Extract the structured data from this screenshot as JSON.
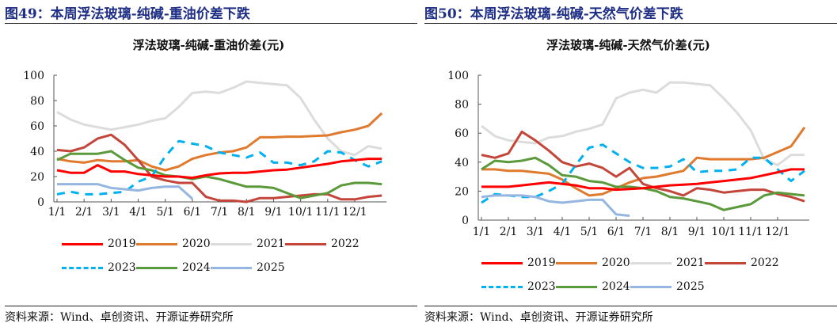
{
  "source": "资料来源：Wind、卓创资讯、开源证券研究所",
  "chart_data": [
    {
      "type": "line",
      "figure_title": "图49：本周浮法玻璃-纯碱-重油价差下跌",
      "title": "浮法玻璃-纯碱-重油价差(元)",
      "ylim": [
        0,
        100
      ],
      "yticks": [
        0,
        20,
        40,
        60,
        80,
        100
      ],
      "xticks": [
        "1/1",
        "2/1",
        "3/1",
        "4/1",
        "5/1",
        "6/1",
        "7/1",
        "8/1",
        "9/1",
        "10/1",
        "11/1",
        "12/1"
      ],
      "legend": "bottom",
      "grid": false,
      "x": [
        "1/1",
        "1/15",
        "2/1",
        "2/15",
        "3/1",
        "3/15",
        "4/1",
        "4/15",
        "5/1",
        "5/15",
        "6/1",
        "6/15",
        "7/1",
        "7/15",
        "8/1",
        "8/15",
        "9/1",
        "9/15",
        "10/1",
        "10/15",
        "11/1",
        "11/15",
        "12/1",
        "12/15",
        "12/31"
      ],
      "series": [
        {
          "name": "2019",
          "color": "#ff0000",
          "dashed": false,
          "values": [
            25,
            23,
            23,
            29,
            24,
            24,
            22,
            21,
            20,
            20,
            19,
            21,
            22.5,
            23,
            23,
            24,
            25,
            25.5,
            27,
            28.5,
            30,
            32,
            33,
            34,
            34
          ]
        },
        {
          "name": "2020",
          "color": "#e07a2e",
          "dashed": false,
          "values": [
            34,
            32,
            31,
            33,
            32,
            32,
            33,
            28,
            25,
            28,
            34,
            37,
            39,
            40,
            43,
            51,
            51,
            51.5,
            51.5,
            52,
            52.5,
            55,
            57,
            60,
            70
          ]
        },
        {
          "name": "2021",
          "color": "#dcdcdc",
          "dashed": false,
          "values": [
            71,
            65,
            61,
            59,
            57,
            59,
            61,
            64,
            66,
            75,
            86,
            87,
            86,
            90,
            95,
            94,
            93,
            92,
            82,
            65,
            50,
            40,
            37,
            44,
            42
          ]
        },
        {
          "name": "2022",
          "color": "#c4463a",
          "dashed": false,
          "values": [
            41,
            40,
            43,
            50,
            53,
            45,
            33,
            20,
            17,
            15,
            15,
            4,
            1,
            1,
            0,
            3,
            3,
            4,
            5,
            6,
            6,
            2,
            2,
            4,
            5
          ]
        },
        {
          "name": "2023",
          "color": "#00b0f0",
          "dashed": true,
          "values": [
            6,
            8,
            6,
            6,
            7,
            8,
            16,
            20,
            36,
            48,
            46,
            44,
            39,
            37,
            35,
            39,
            31,
            31,
            29,
            32,
            40,
            39,
            33,
            28,
            32
          ]
        },
        {
          "name": "2024",
          "color": "#5b9a3a",
          "dashed": false,
          "values": [
            33,
            38,
            38,
            38,
            40,
            33,
            27,
            25,
            21,
            20,
            18,
            20,
            18,
            15,
            12,
            12,
            11,
            7,
            3,
            5,
            7,
            13,
            15,
            15,
            14
          ]
        },
        {
          "name": "2025",
          "color": "#95b6e0",
          "dashed": false,
          "values": [
            14,
            14,
            14,
            14,
            11,
            10,
            9,
            11,
            12,
            12,
            2.5,
            null,
            null,
            null,
            null,
            null,
            null,
            null,
            null,
            null,
            null,
            null,
            null,
            null,
            null
          ]
        }
      ]
    },
    {
      "type": "line",
      "figure_title": "图50：本周浮法玻璃-纯碱-天然气价差下跌",
      "title": "浮法玻璃-纯碱-天然气价差(元)",
      "ylim": [
        0,
        100
      ],
      "yticks": [
        0,
        20,
        40,
        60,
        80,
        100
      ],
      "xticks": [
        "1/1",
        "2/1",
        "3/1",
        "4/1",
        "5/1",
        "6/1",
        "7/1",
        "8/1",
        "9/1",
        "10/1",
        "11/1",
        "12/1"
      ],
      "legend": "bottom",
      "grid": false,
      "x": [
        "1/1",
        "1/15",
        "2/1",
        "2/15",
        "3/1",
        "3/15",
        "4/1",
        "4/15",
        "5/1",
        "5/15",
        "6/1",
        "6/15",
        "7/1",
        "7/15",
        "8/1",
        "8/15",
        "9/1",
        "9/15",
        "10/1",
        "10/15",
        "11/1",
        "11/15",
        "12/1",
        "12/15",
        "12/31"
      ],
      "series": [
        {
          "name": "2019",
          "color": "#ff0000",
          "dashed": false,
          "values": [
            23,
            23,
            23,
            24,
            25,
            26,
            25,
            24,
            22,
            22,
            21,
            21.5,
            22,
            23,
            24,
            24.5,
            25,
            26,
            27,
            28,
            29,
            31,
            33,
            35,
            35
          ]
        },
        {
          "name": "2020",
          "color": "#e07a2e",
          "dashed": false,
          "values": [
            35,
            35,
            34,
            34,
            33,
            32,
            28,
            22,
            17,
            18,
            22,
            26,
            29,
            30,
            32,
            34,
            43,
            42,
            42,
            42,
            42,
            43,
            47,
            51,
            64
          ]
        },
        {
          "name": "2021",
          "color": "#dcdcdc",
          "dashed": false,
          "values": [
            65,
            58,
            55,
            54,
            53,
            57,
            58,
            61,
            63,
            66,
            84,
            88,
            90,
            88,
            95,
            95,
            94,
            93,
            84,
            74,
            62,
            42,
            38,
            45,
            45
          ]
        },
        {
          "name": "2022",
          "color": "#c4463a",
          "dashed": false,
          "values": [
            45,
            43,
            46,
            61,
            55,
            48,
            40,
            37,
            39,
            36,
            30,
            36,
            25,
            22,
            20,
            17,
            22,
            21,
            19,
            20,
            21,
            21,
            18,
            16,
            13
          ]
        },
        {
          "name": "2023",
          "color": "#00b0f0",
          "dashed": true,
          "values": [
            12,
            18,
            17,
            16,
            16,
            20,
            25,
            38,
            50,
            52,
            46,
            40,
            36,
            36,
            37,
            42,
            33,
            34,
            34,
            35,
            43,
            43,
            35,
            27,
            34
          ]
        },
        {
          "name": "2024",
          "color": "#5b9a3a",
          "dashed": false,
          "values": [
            35,
            41,
            40,
            41,
            43,
            38,
            31,
            30,
            27,
            26,
            23,
            23,
            22,
            20,
            16,
            15,
            13,
            11,
            7,
            9,
            11,
            17,
            19,
            18,
            17
          ]
        },
        {
          "name": "2025",
          "color": "#95b6e0",
          "dashed": false,
          "values": [
            16,
            17,
            17,
            17,
            16,
            13,
            12,
            13,
            14,
            14,
            4,
            3,
            null,
            null,
            null,
            null,
            null,
            null,
            null,
            null,
            null,
            null,
            null,
            null,
            null
          ]
        }
      ]
    }
  ]
}
